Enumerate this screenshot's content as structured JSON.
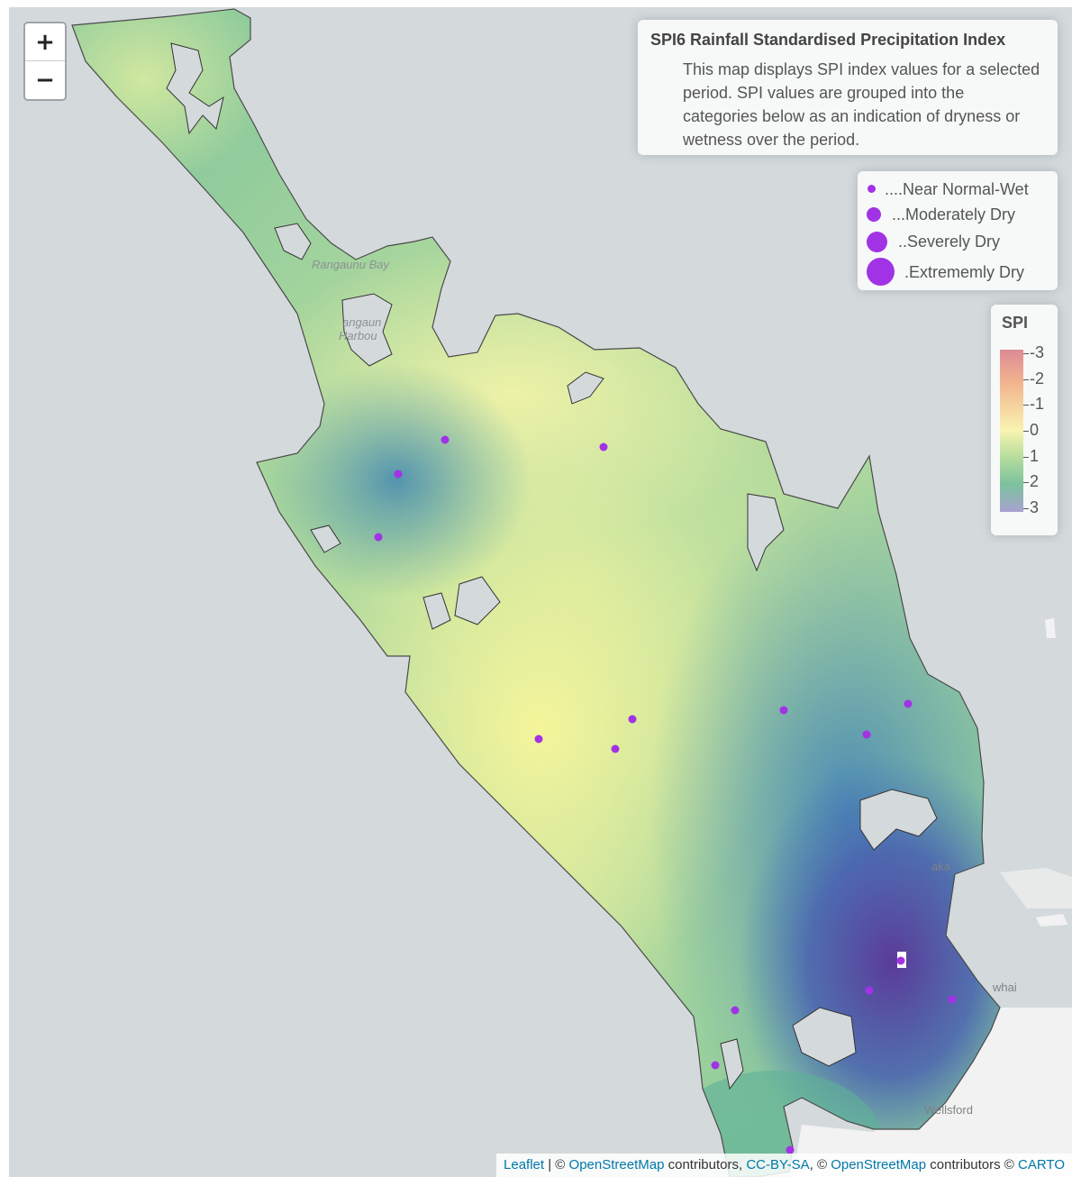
{
  "map": {
    "zoom_in_label": "+",
    "zoom_out_label": "−",
    "place_labels": [
      "Rangaunu Bay",
      "Rangaunu",
      "Harbour",
      "Wellsford",
      "Kaiwaka",
      "Mangawhai"
    ],
    "place_labels_visible": [
      "Rangaunu Bay",
      "angaun",
      "Harbou",
      "Wellsford",
      "aka",
      "whai"
    ]
  },
  "info_panel": {
    "title": "SPI6 Rainfall Standardised Precipitation Index",
    "description": "This map displays SPI index values for a selected period. SPI values are grouped into the categories below as an indication of dryness or wetness over the period."
  },
  "size_legend": {
    "marker_color": "#a232e6",
    "items": [
      {
        "label": "....Near Normal-Wet"
      },
      {
        "label": "...Moderately Dry"
      },
      {
        "label": "..Severely Dry"
      },
      {
        "label": ".Extrememly Dry"
      }
    ]
  },
  "spi_legend": {
    "title": "SPI",
    "ticks": [
      "-3",
      "-2",
      "-1",
      "0",
      "1",
      "2",
      "3"
    ],
    "colors": [
      "#dc8a96",
      "#f2b38e",
      "#f8f4b0",
      "#b7dd9c",
      "#7cc19e",
      "#a8a2d0"
    ]
  },
  "attribution": {
    "leaflet": "Leaflet",
    "sep1": " | © ",
    "osm1": "OpenStreetMap",
    "mid1": " contributors, ",
    "ccbysa": "CC-BY-SA",
    "mid2": ", © ",
    "osm2": "OpenStreetMap",
    "mid3": " contributors © ",
    "carto": "CARTO"
  },
  "colors": {
    "water": "#d4dadc",
    "land_outside": "#f2f2f2",
    "dry_high": "#f2f4a0",
    "wet_mid": "#5cb39a",
    "very_wet": "#5a3f9a"
  }
}
